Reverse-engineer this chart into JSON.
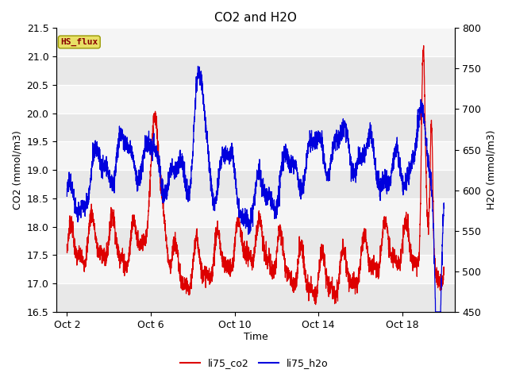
{
  "title": "CO2 and H2O",
  "xlabel": "Time",
  "ylabel_left": "CO2 (mmol/m3)",
  "ylabel_right": "H2O (mmol/m3)",
  "ylim_left": [
    16.5,
    21.5
  ],
  "ylim_right": [
    450,
    800
  ],
  "xtick_labels": [
    "Oct 2",
    "Oct 6",
    "Oct 10",
    "Oct 14",
    "Oct 18"
  ],
  "xtick_positions": [
    2,
    6,
    10,
    14,
    18
  ],
  "xlim": [
    1.5,
    20.5
  ],
  "bg_color": "#ffffff",
  "plot_bg_color": "#e8e8e8",
  "stripe_color": "#f5f5f5",
  "line_color_co2": "#dd0000",
  "line_color_h2o": "#0000dd",
  "legend_co2": "li75_co2",
  "legend_h2o": "li75_h2o",
  "annotation_text": "HS_flux",
  "annotation_bg": "#e8e066",
  "annotation_border": "#999900",
  "n_points": 3000
}
